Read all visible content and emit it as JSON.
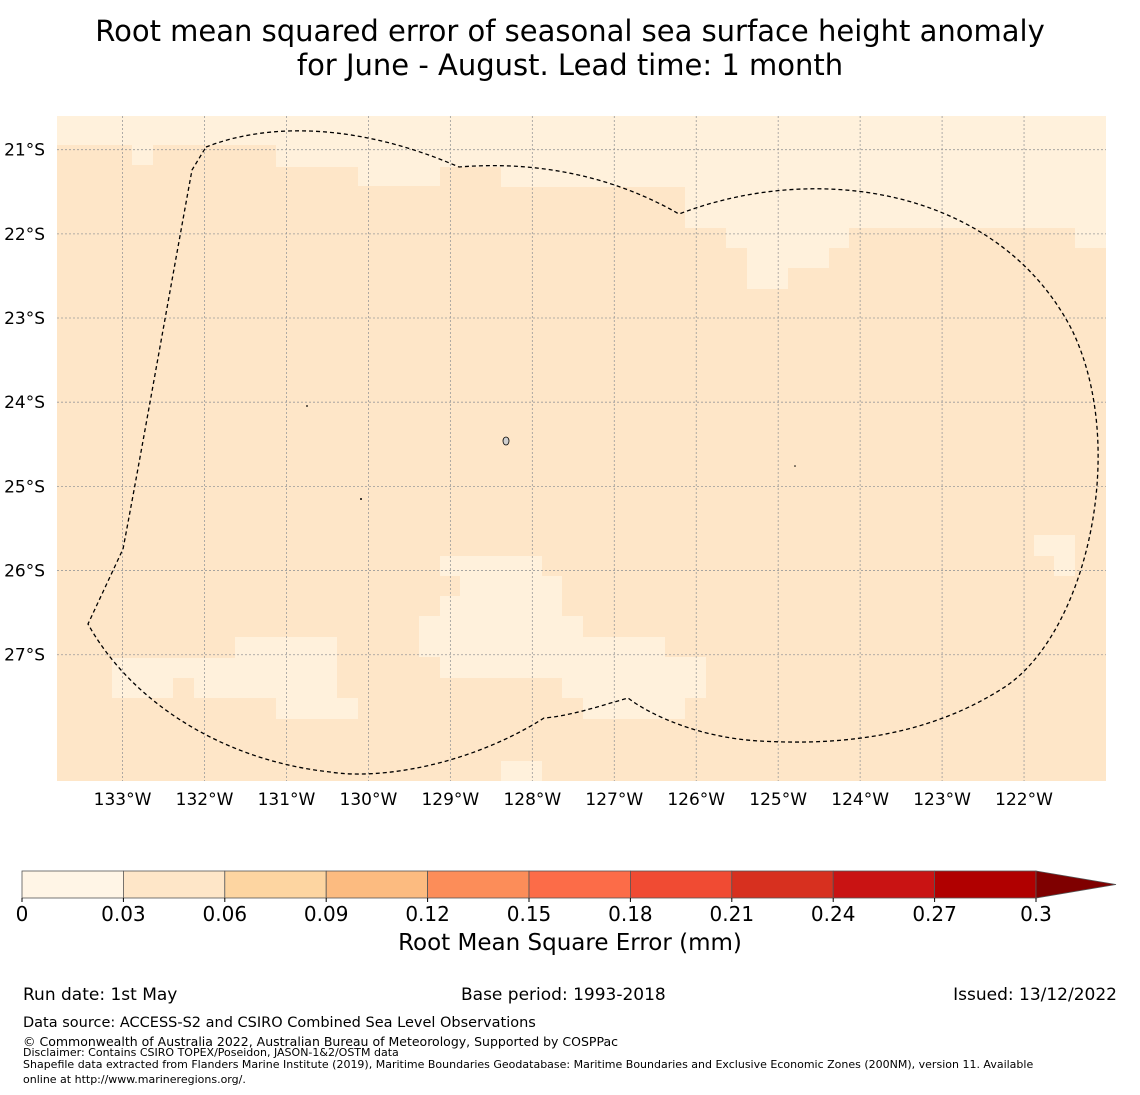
{
  "title": {
    "line1": "Root mean squared error of seasonal sea surface height anomaly",
    "line2": "for June - August. Lead time: 1 month"
  },
  "map": {
    "lat_labels": [
      "21°S",
      "22°S",
      "23°S",
      "24°S",
      "25°S",
      "26°S",
      "27°S"
    ],
    "lon_labels": [
      "133°W",
      "132°W",
      "131°W",
      "130°W",
      "129°W",
      "128°W",
      "127°W",
      "126°W",
      "125°W",
      "124°W",
      "123°W",
      "122°W"
    ],
    "lon_range": [
      -133.8,
      -121.0
    ],
    "lat_range": [
      -28.5,
      -20.6
    ],
    "grid": true,
    "boundary_style": "dashed",
    "colors": {
      "low": "#fff1dc",
      "mid": "#fee6c8"
    }
  },
  "colorbar": {
    "ticks": [
      "0",
      "0.03",
      "0.06",
      "0.09",
      "0.12",
      "0.15",
      "0.18",
      "0.21",
      "0.24",
      "0.27",
      "0.3"
    ],
    "colors": [
      "#fff5e6",
      "#fee6c8",
      "#fdd5a1",
      "#fcbb80",
      "#fc8d59",
      "#fc6c48",
      "#f04b33",
      "#d7301f",
      "#c91313",
      "#b00000",
      "#7f0000"
    ],
    "extend": "max",
    "label": "Root Mean Square Error (mm)"
  },
  "footer": {
    "run_date": "Run date: 1st May",
    "base_period": "Base period: 1993-2018",
    "issued": "Issued: 13/12/2022",
    "data_source": "Data source: ACCESS-S2 and CSIRO Combined Sea Level Observations",
    "copyright": "© Commonwealth of Australia 2022, Australian Bureau of Meteorology, Supported by COSPPac",
    "disclaimer": "Disclaimer: Contains CSIRO TOPEX/Poseidon, JASON-1&2/OSTM data",
    "shapefile_line1": "Shapefile data extracted from Flanders Marine Institute (2019), Maritime Boundaries Geodatabase: Maritime Boundaries and Exclusive Economic Zones (200NM), version 11. Available",
    "shapefile_line2": "online at http://www.marineregions.org/."
  }
}
